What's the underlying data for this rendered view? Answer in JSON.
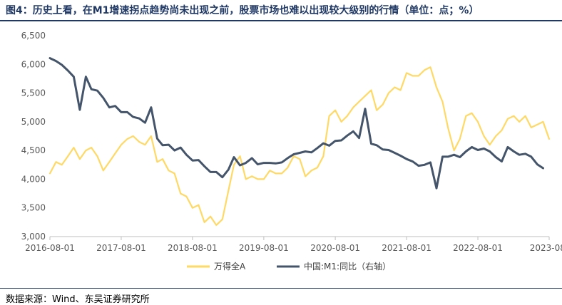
{
  "header": {
    "title": "图4：历史上看，在M1增速拐点趋势尚未出现之前，股票市场也难以出现较大级别的行情（单位：点；%）"
  },
  "footer": {
    "source": "数据来源：Wind、东吴证券研究所"
  },
  "colors": {
    "wind_a": "#FFD966",
    "m1": "#44546A",
    "axis": "#BFBFBF",
    "title": "#1F3864"
  },
  "chart_data": {
    "type": "line",
    "title": "",
    "xlabel": "",
    "ylabel": "",
    "grid": false,
    "legend": "bottom",
    "x_ticks": [
      "2016-08-01",
      "2017-08-01",
      "2018-08-01",
      "2019-08-01",
      "2020-08-01",
      "2021-08-01",
      "2022-08-01",
      "2023-08-01"
    ],
    "x_tick_labels": [
      "2016-08-01",
      "2017-08-01",
      "2018-08-01",
      "2019-08-01",
      "2020-08-01",
      "2021-08-01",
      "2022-08-01",
      "2023-08-"
    ],
    "y_left": {
      "min": 3000,
      "max": 6500,
      "step": 500,
      "tick_labels": [
        "3,000",
        "3,500",
        "4,000",
        "4,500",
        "5,000",
        "5,500",
        "6,000",
        "6,500"
      ]
    },
    "series": [
      {
        "name": "万得全A",
        "axis": "left",
        "color": "#FFD966",
        "points": [
          [
            "2016-08-01",
            4100
          ],
          [
            "2016-09-01",
            4300
          ],
          [
            "2016-10-01",
            4250
          ],
          [
            "2016-11-01",
            4400
          ],
          [
            "2016-12-01",
            4550
          ],
          [
            "2017-01-01",
            4350
          ],
          [
            "2017-02-01",
            4500
          ],
          [
            "2017-03-01",
            4550
          ],
          [
            "2017-04-01",
            4400
          ],
          [
            "2017-05-01",
            4150
          ],
          [
            "2017-06-01",
            4300
          ],
          [
            "2017-07-01",
            4450
          ],
          [
            "2017-08-01",
            4600
          ],
          [
            "2017-09-01",
            4700
          ],
          [
            "2017-10-01",
            4750
          ],
          [
            "2017-11-01",
            4650
          ],
          [
            "2017-12-01",
            4600
          ],
          [
            "2018-01-01",
            4750
          ],
          [
            "2018-02-01",
            4300
          ],
          [
            "2018-03-01",
            4350
          ],
          [
            "2018-04-01",
            4150
          ],
          [
            "2018-05-01",
            4100
          ],
          [
            "2018-06-01",
            3750
          ],
          [
            "2018-07-01",
            3700
          ],
          [
            "2018-08-01",
            3500
          ],
          [
            "2018-09-01",
            3550
          ],
          [
            "2018-10-01",
            3250
          ],
          [
            "2018-11-01",
            3350
          ],
          [
            "2018-12-01",
            3200
          ],
          [
            "2019-01-01",
            3300
          ],
          [
            "2019-02-01",
            3800
          ],
          [
            "2019-03-01",
            4250
          ],
          [
            "2019-04-01",
            4400
          ],
          [
            "2019-05-01",
            4000
          ],
          [
            "2019-06-01",
            4050
          ],
          [
            "2019-07-01",
            4000
          ],
          [
            "2019-08-01",
            4000
          ],
          [
            "2019-09-01",
            4150
          ],
          [
            "2019-10-01",
            4100
          ],
          [
            "2019-11-01",
            4100
          ],
          [
            "2019-12-01",
            4200
          ],
          [
            "2020-01-01",
            4400
          ],
          [
            "2020-02-01",
            4350
          ],
          [
            "2020-03-01",
            4050
          ],
          [
            "2020-04-01",
            4150
          ],
          [
            "2020-05-01",
            4200
          ],
          [
            "2020-06-01",
            4400
          ],
          [
            "2020-07-01",
            5100
          ],
          [
            "2020-08-01",
            5200
          ],
          [
            "2020-09-01",
            5000
          ],
          [
            "2020-10-01",
            5100
          ],
          [
            "2020-11-01",
            5250
          ],
          [
            "2020-12-01",
            5350
          ],
          [
            "2021-01-01",
            5450
          ],
          [
            "2021-02-01",
            5550
          ],
          [
            "2021-03-01",
            5200
          ],
          [
            "2021-04-01",
            5300
          ],
          [
            "2021-05-01",
            5500
          ],
          [
            "2021-06-01",
            5600
          ],
          [
            "2021-07-01",
            5550
          ],
          [
            "2021-08-01",
            5850
          ],
          [
            "2021-09-01",
            5800
          ],
          [
            "2021-10-01",
            5800
          ],
          [
            "2021-11-01",
            5900
          ],
          [
            "2021-12-01",
            5950
          ],
          [
            "2022-01-01",
            5600
          ],
          [
            "2022-02-01",
            5350
          ],
          [
            "2022-03-01",
            4900
          ],
          [
            "2022-04-01",
            4500
          ],
          [
            "2022-05-01",
            4700
          ],
          [
            "2022-06-01",
            5100
          ],
          [
            "2022-07-01",
            5150
          ],
          [
            "2022-08-01",
            5000
          ],
          [
            "2022-09-01",
            4750
          ],
          [
            "2022-10-01",
            4600
          ],
          [
            "2022-11-01",
            4750
          ],
          [
            "2022-12-01",
            4850
          ],
          [
            "2023-01-01",
            5050
          ],
          [
            "2023-02-01",
            5100
          ],
          [
            "2023-03-01",
            5000
          ],
          [
            "2023-04-01",
            5100
          ],
          [
            "2023-05-01",
            4900
          ],
          [
            "2023-06-01",
            4950
          ],
          [
            "2023-07-01",
            5000
          ],
          [
            "2023-08-01",
            4700
          ]
        ]
      },
      {
        "name": "中国:M1:同比（右轴）",
        "axis": "right",
        "color": "#44546A",
        "points": [
          [
            "2016-08-01",
            25.3
          ],
          [
            "2016-09-01",
            24.7
          ],
          [
            "2016-10-01",
            23.9
          ],
          [
            "2016-11-01",
            22.7
          ],
          [
            "2016-12-01",
            21.4
          ],
          [
            "2017-01-01",
            14.5
          ],
          [
            "2017-02-01",
            21.4
          ],
          [
            "2017-03-01",
            18.8
          ],
          [
            "2017-04-01",
            18.5
          ],
          [
            "2017-05-01",
            17.0
          ],
          [
            "2017-06-01",
            15.0
          ],
          [
            "2017-07-01",
            15.3
          ],
          [
            "2017-08-01",
            14.0
          ],
          [
            "2017-09-01",
            14.0
          ],
          [
            "2017-10-01",
            13.0
          ],
          [
            "2017-11-01",
            12.7
          ],
          [
            "2017-12-01",
            11.8
          ],
          [
            "2018-01-01",
            15.0
          ],
          [
            "2018-02-01",
            8.5
          ],
          [
            "2018-03-01",
            7.1
          ],
          [
            "2018-04-01",
            7.2
          ],
          [
            "2018-05-01",
            6.0
          ],
          [
            "2018-06-01",
            6.6
          ],
          [
            "2018-07-01",
            5.1
          ],
          [
            "2018-08-01",
            3.9
          ],
          [
            "2018-09-01",
            4.0
          ],
          [
            "2018-10-01",
            2.7
          ],
          [
            "2018-11-01",
            1.5
          ],
          [
            "2018-12-01",
            1.5
          ],
          [
            "2019-01-01",
            0.4
          ],
          [
            "2019-02-01",
            2.0
          ],
          [
            "2019-03-01",
            4.6
          ],
          [
            "2019-04-01",
            2.9
          ],
          [
            "2019-05-01",
            3.4
          ],
          [
            "2019-06-01",
            4.4
          ],
          [
            "2019-07-01",
            3.1
          ],
          [
            "2019-08-01",
            3.4
          ],
          [
            "2019-09-01",
            3.4
          ],
          [
            "2019-10-01",
            3.3
          ],
          [
            "2019-11-01",
            3.5
          ],
          [
            "2019-12-01",
            4.4
          ],
          [
            "2020-01-01",
            5.2
          ],
          [
            "2020-02-01",
            5.5
          ],
          [
            "2020-03-01",
            5.8
          ],
          [
            "2020-04-01",
            5.6
          ],
          [
            "2020-05-01",
            6.5
          ],
          [
            "2020-06-01",
            7.5
          ],
          [
            "2020-07-01",
            7.0
          ],
          [
            "2020-08-01",
            8.0
          ],
          [
            "2020-09-01",
            8.1
          ],
          [
            "2020-10-01",
            9.1
          ],
          [
            "2020-11-01",
            10.0
          ],
          [
            "2020-12-01",
            8.6
          ],
          [
            "2021-01-01",
            14.7
          ],
          [
            "2021-02-01",
            7.4
          ],
          [
            "2021-03-01",
            7.1
          ],
          [
            "2021-04-01",
            6.2
          ],
          [
            "2021-05-01",
            6.1
          ],
          [
            "2021-06-01",
            5.5
          ],
          [
            "2021-07-01",
            4.9
          ],
          [
            "2021-08-01",
            4.2
          ],
          [
            "2021-09-01",
            3.7
          ],
          [
            "2021-10-01",
            2.8
          ],
          [
            "2021-11-01",
            3.0
          ],
          [
            "2021-12-01",
            3.5
          ],
          [
            "2022-01-01",
            -1.9
          ],
          [
            "2022-02-01",
            4.7
          ],
          [
            "2022-03-01",
            4.7
          ],
          [
            "2022-04-01",
            5.1
          ],
          [
            "2022-05-01",
            4.6
          ],
          [
            "2022-06-01",
            5.8
          ],
          [
            "2022-07-01",
            6.7
          ],
          [
            "2022-08-01",
            6.1
          ],
          [
            "2022-09-01",
            6.4
          ],
          [
            "2022-10-01",
            5.8
          ],
          [
            "2022-11-01",
            4.6
          ],
          [
            "2022-12-01",
            3.7
          ],
          [
            "2023-01-01",
            6.7
          ],
          [
            "2023-02-01",
            5.8
          ],
          [
            "2023-03-01",
            5.1
          ],
          [
            "2023-04-01",
            5.3
          ],
          [
            "2023-05-01",
            4.7
          ],
          [
            "2023-06-01",
            3.1
          ],
          [
            "2023-07-01",
            2.3
          ]
        ]
      }
    ]
  }
}
